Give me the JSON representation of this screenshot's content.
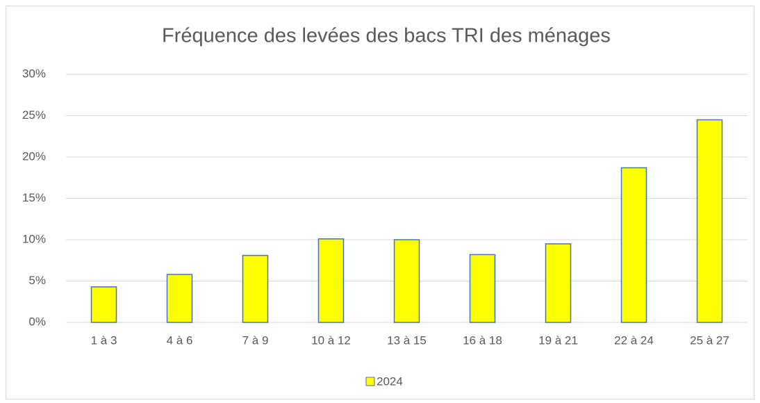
{
  "chart_data": {
    "type": "bar",
    "title": "Fréquence des levées des bacs TRI des ménages",
    "categories": [
      "1 à 3",
      "4 à 6",
      "7 à 9",
      "10 à 12",
      "13 à 15",
      "16 à 18",
      "19 à 21",
      "22 à 24",
      "25 à 27"
    ],
    "series": [
      {
        "name": "2024",
        "color": "#ffff00",
        "edge_color": "#4472c4",
        "values": [
          4.3,
          5.8,
          8.1,
          10.1,
          10.0,
          8.2,
          9.5,
          18.7,
          24.5
        ]
      }
    ],
    "ylim": [
      0,
      30
    ],
    "yticks": [
      {
        "value": 0,
        "label": "0%"
      },
      {
        "value": 5,
        "label": "5%"
      },
      {
        "value": 10,
        "label": "10%"
      },
      {
        "value": 15,
        "label": "15%"
      },
      {
        "value": 20,
        "label": "20%"
      },
      {
        "value": 25,
        "label": "25%"
      },
      {
        "value": 30,
        "label": "30%"
      }
    ],
    "grid": true,
    "legend": "bottom"
  }
}
